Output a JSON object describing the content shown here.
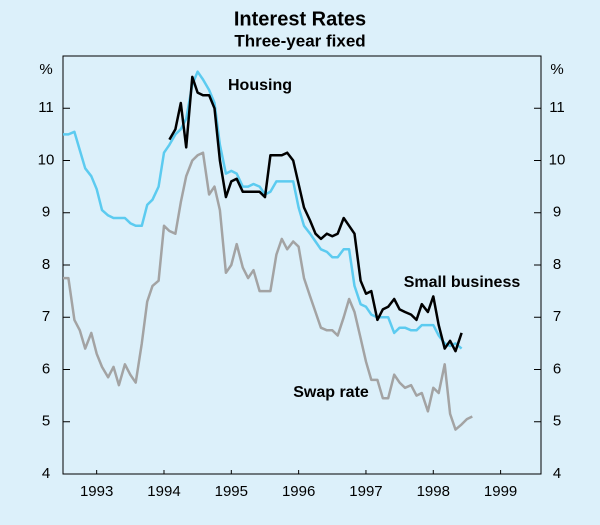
{
  "chart_data": {
    "type": "line",
    "title": "Interest Rates",
    "subtitle": "Three-year fixed",
    "y_unit": "%",
    "ylim": [
      4,
      12
    ],
    "yticks": [
      4,
      5,
      6,
      7,
      8,
      9,
      10,
      11
    ],
    "xlim": [
      1993,
      2000.1
    ],
    "xticks": [
      {
        "value": 1993.5,
        "label": "1993"
      },
      {
        "value": 1994.5,
        "label": "1994"
      },
      {
        "value": 1995.5,
        "label": "1995"
      },
      {
        "value": 1996.5,
        "label": "1996"
      },
      {
        "value": 1997.5,
        "label": "1997"
      },
      {
        "value": 1998.5,
        "label": "1998"
      },
      {
        "value": 1999.5,
        "label": "1999"
      }
    ],
    "series": [
      {
        "name": "Housing",
        "color": "#5ccbf0",
        "x": [
          1993.0,
          1993.08,
          1993.17,
          1993.25,
          1993.33,
          1993.42,
          1993.5,
          1993.58,
          1993.67,
          1993.75,
          1993.83,
          1993.92,
          1994.0,
          1994.08,
          1994.17,
          1994.25,
          1994.33,
          1994.42,
          1994.5,
          1994.58,
          1994.67,
          1994.75,
          1994.83,
          1994.92,
          1995.0,
          1995.08,
          1995.17,
          1995.25,
          1995.33,
          1995.42,
          1995.5,
          1995.58,
          1995.67,
          1995.75,
          1995.83,
          1995.92,
          1996.0,
          1996.08,
          1996.17,
          1996.25,
          1996.33,
          1996.42,
          1996.5,
          1996.58,
          1996.67,
          1996.75,
          1996.83,
          1996.92,
          1997.0,
          1997.08,
          1997.17,
          1997.25,
          1997.33,
          1997.42,
          1997.5,
          1997.58,
          1997.67,
          1997.75,
          1997.83,
          1997.92,
          1998.0,
          1998.08,
          1998.17,
          1998.25,
          1998.33,
          1998.42,
          1998.5,
          1998.58,
          1998.67,
          1998.75,
          1998.83,
          1998.92
        ],
        "values": [
          10.5,
          10.5,
          10.55,
          10.2,
          9.85,
          9.7,
          9.45,
          9.05,
          8.95,
          8.9,
          8.9,
          8.9,
          8.8,
          8.75,
          8.75,
          9.15,
          9.25,
          9.5,
          10.15,
          10.3,
          10.5,
          10.6,
          10.8,
          11.45,
          11.7,
          11.55,
          11.35,
          11.1,
          10.3,
          9.75,
          9.8,
          9.75,
          9.5,
          9.5,
          9.55,
          9.5,
          9.35,
          9.4,
          9.6,
          9.6,
          9.6,
          9.6,
          9.1,
          8.75,
          8.6,
          8.45,
          8.3,
          8.25,
          8.15,
          8.15,
          8.3,
          8.3,
          7.6,
          7.25,
          7.2,
          7.05,
          7.0,
          7.0,
          7.0,
          6.7,
          6.8,
          6.8,
          6.75,
          6.75,
          6.85,
          6.85,
          6.85,
          6.65,
          6.5,
          6.45,
          6.5,
          6.4
        ]
      },
      {
        "name": "Small business",
        "color": "#000000",
        "x": [
          1994.58,
          1994.67,
          1994.75,
          1994.83,
          1994.92,
          1995.0,
          1995.08,
          1995.17,
          1995.25,
          1995.33,
          1995.42,
          1995.5,
          1995.58,
          1995.67,
          1995.75,
          1995.83,
          1995.92,
          1996.0,
          1996.08,
          1996.17,
          1996.25,
          1996.33,
          1996.42,
          1996.5,
          1996.58,
          1996.67,
          1996.75,
          1996.83,
          1996.92,
          1997.0,
          1997.08,
          1997.17,
          1997.25,
          1997.33,
          1997.42,
          1997.5,
          1997.58,
          1997.67,
          1997.75,
          1997.83,
          1997.92,
          1998.0,
          1998.08,
          1998.17,
          1998.25,
          1998.33,
          1998.42,
          1998.5,
          1998.58,
          1998.67,
          1998.75,
          1998.83,
          1998.92
        ],
        "values": [
          10.4,
          10.6,
          11.1,
          10.25,
          11.6,
          11.3,
          11.25,
          11.25,
          11.0,
          10.0,
          9.3,
          9.6,
          9.65,
          9.4,
          9.4,
          9.4,
          9.4,
          9.3,
          10.1,
          10.1,
          10.1,
          10.15,
          10.0,
          9.55,
          9.1,
          8.85,
          8.6,
          8.5,
          8.6,
          8.55,
          8.6,
          8.9,
          8.75,
          8.6,
          7.7,
          7.45,
          7.5,
          6.95,
          7.15,
          7.2,
          7.35,
          7.15,
          7.1,
          7.05,
          6.95,
          7.25,
          7.1,
          7.4,
          6.85,
          6.4,
          6.55,
          6.35,
          6.7
        ]
      },
      {
        "name": "Swap rate",
        "color": "#a3a3a3",
        "x": [
          1993.0,
          1993.08,
          1993.17,
          1993.25,
          1993.33,
          1993.42,
          1993.5,
          1993.58,
          1993.67,
          1993.75,
          1993.83,
          1993.92,
          1994.0,
          1994.08,
          1994.17,
          1994.25,
          1994.33,
          1994.42,
          1994.5,
          1994.58,
          1994.67,
          1994.75,
          1994.83,
          1994.92,
          1995.0,
          1995.08,
          1995.17,
          1995.25,
          1995.33,
          1995.42,
          1995.5,
          1995.58,
          1995.67,
          1995.75,
          1995.83,
          1995.92,
          1996.0,
          1996.08,
          1996.17,
          1996.25,
          1996.33,
          1996.42,
          1996.5,
          1996.58,
          1996.67,
          1996.75,
          1996.83,
          1996.92,
          1997.0,
          1997.08,
          1997.17,
          1997.25,
          1997.33,
          1997.42,
          1997.5,
          1997.58,
          1997.67,
          1997.75,
          1997.83,
          1997.92,
          1998.0,
          1998.08,
          1998.17,
          1998.25,
          1998.33,
          1998.42,
          1998.5,
          1998.58,
          1998.67,
          1998.75,
          1998.83,
          1998.92,
          1999.0,
          1999.08
        ],
        "values": [
          7.75,
          7.75,
          6.95,
          6.75,
          6.4,
          6.7,
          6.3,
          6.05,
          5.85,
          6.05,
          5.7,
          6.1,
          5.9,
          5.75,
          6.5,
          7.3,
          7.6,
          7.7,
          8.75,
          8.65,
          8.6,
          9.2,
          9.7,
          10.0,
          10.1,
          10.15,
          9.35,
          9.5,
          9.05,
          7.85,
          8.0,
          8.4,
          7.95,
          7.75,
          7.9,
          7.5,
          7.5,
          7.5,
          8.2,
          8.5,
          8.3,
          8.45,
          8.35,
          7.75,
          7.4,
          7.1,
          6.8,
          6.75,
          6.75,
          6.65,
          7.0,
          7.35,
          7.1,
          6.6,
          6.15,
          5.8,
          5.8,
          5.45,
          5.45,
          5.9,
          5.75,
          5.65,
          5.7,
          5.5,
          5.55,
          5.2,
          5.65,
          5.55,
          6.1,
          5.15,
          4.85,
          4.95,
          5.05,
          5.1
        ]
      }
    ]
  }
}
